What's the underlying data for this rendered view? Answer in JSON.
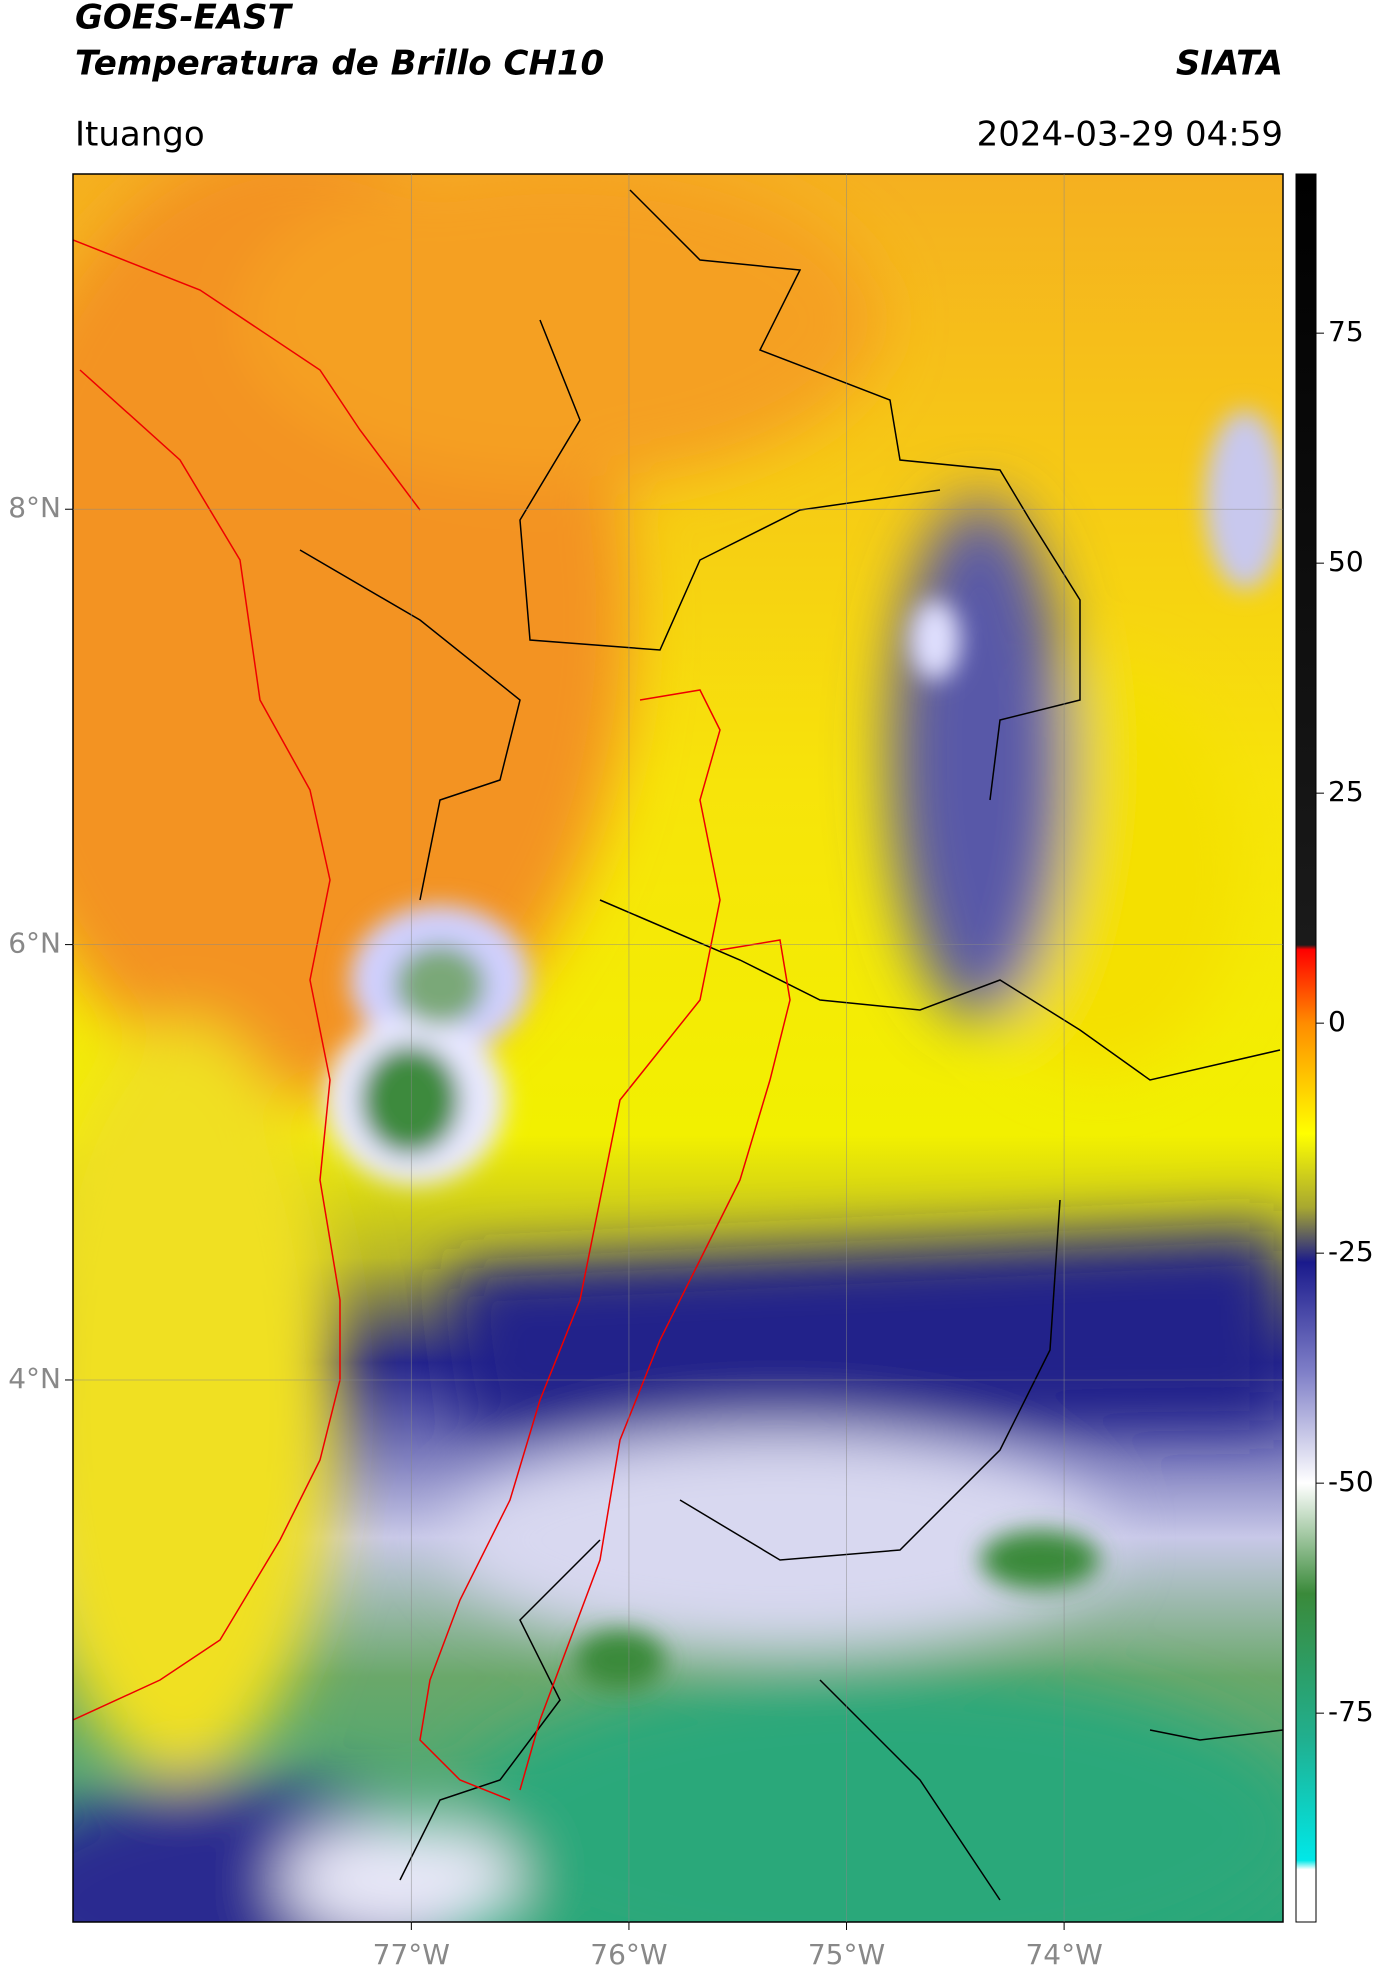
{
  "header": {
    "title": "GOES-EAST",
    "subtitle": "Temperatura de Brillo CH10",
    "source": "SIATA",
    "location": "Ituango",
    "datetime": "2024-03-29 04:59"
  },
  "map": {
    "lonlim": [
      -78.555,
      -72.994
    ],
    "latlim": [
      1.51,
      9.54
    ],
    "lonticks": [
      {
        "value": -77,
        "label": "77°W"
      },
      {
        "value": -76,
        "label": "76°W"
      },
      {
        "value": -75,
        "label": "75°W"
      },
      {
        "value": -74,
        "label": "74°W"
      }
    ],
    "latticks": [
      {
        "value": 8,
        "label": "8°N"
      },
      {
        "value": 6,
        "label": "6°N"
      },
      {
        "value": 4,
        "label": "4°N"
      }
    ],
    "grid": true
  },
  "colorbar": {
    "lim": [
      -97.7,
      92.3
    ],
    "ticks": [
      75,
      50,
      25,
      0,
      -25,
      -50,
      -75
    ],
    "colormap": [
      {
        "value": 92.3,
        "color": "#000000"
      },
      {
        "value": 8.5,
        "color": "#1a1a1a"
      },
      {
        "value": 8,
        "color": "#ff0000"
      },
      {
        "value": 0,
        "color": "#ff8c00"
      },
      {
        "value": -12,
        "color": "#ffff00"
      },
      {
        "value": -20,
        "color": "#a8a830"
      },
      {
        "value": -26,
        "color": "#1a1a8c"
      },
      {
        "value": -38,
        "color": "#8080c8"
      },
      {
        "value": -50,
        "color": "#ffffff"
      },
      {
        "value": -62,
        "color": "#3a8a3a"
      },
      {
        "value": -78,
        "color": "#20b090"
      },
      {
        "value": -91,
        "color": "#00e8e8"
      },
      {
        "value": -92,
        "color": "#ffffff"
      },
      {
        "value": -97.7,
        "color": "#ffffff"
      }
    ]
  }
}
